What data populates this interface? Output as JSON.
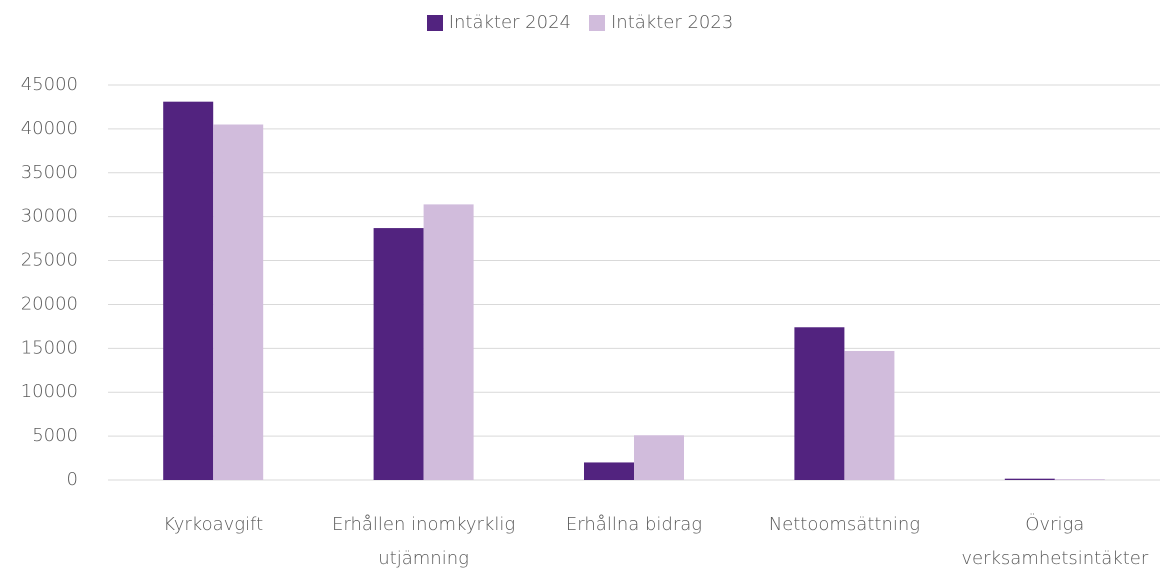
{
  "chart_data": {
    "type": "bar",
    "categories": [
      "Kyrkoavgift",
      "Erhållen inomkyrklig utjämning",
      "Erhållna bidrag",
      "Nettoomsättning",
      "Övriga verksamhetsintäkter"
    ],
    "series": [
      {
        "name": "Intäkter 2024",
        "color": "#52237f",
        "values": [
          43100,
          28700,
          2000,
          17400,
          150
        ]
      },
      {
        "name": "Intäkter 2023",
        "color": "#d1bcdc",
        "values": [
          40500,
          31400,
          5100,
          14700,
          100
        ]
      }
    ],
    "ylim": [
      0,
      45000
    ],
    "yticks": [
      0,
      5000,
      10000,
      15000,
      20000,
      25000,
      30000,
      35000,
      40000,
      45000
    ],
    "grid": true,
    "legend": "top"
  }
}
